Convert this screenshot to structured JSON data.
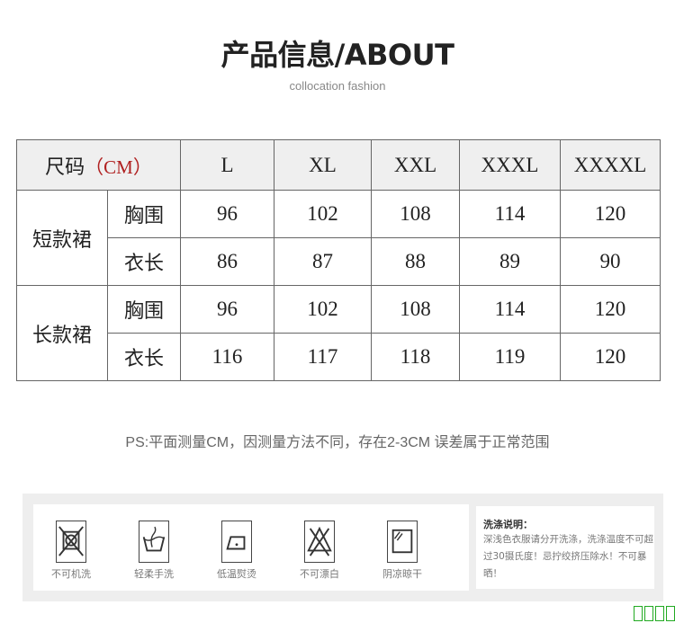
{
  "header": {
    "title": "产品信息/ABOUT",
    "subtitle": "collocation fashion"
  },
  "table": {
    "size_label": "尺码",
    "unit_label": "（CM）",
    "sizes": [
      "L",
      "XL",
      "XXL",
      "XXXL",
      "XXXXL"
    ],
    "groups": [
      {
        "name": "短款裙",
        "rows": [
          {
            "label": "胸围",
            "values": [
              "96",
              "102",
              "108",
              "114",
              "120"
            ]
          },
          {
            "label": "衣长",
            "values": [
              "86",
              "87",
              "88",
              "89",
              "90"
            ]
          }
        ]
      },
      {
        "name": "长款裙",
        "rows": [
          {
            "label": "胸围",
            "values": [
              "96",
              "102",
              "108",
              "114",
              "120"
            ]
          },
          {
            "label": "衣长",
            "values": [
              "116",
              "117",
              "118",
              "119",
              "120"
            ]
          }
        ]
      }
    ]
  },
  "note": "PS:平面测量CM，因测量方法不同，存在2-3CM 误差属于正常范围",
  "care": {
    "items": [
      {
        "icon": "no-machine-wash-icon",
        "label": "不可机洗"
      },
      {
        "icon": "hand-wash-icon",
        "label": "轻柔手洗"
      },
      {
        "icon": "low-iron-icon",
        "label": "低温熨烫"
      },
      {
        "icon": "no-bleach-icon",
        "label": "不可漂白"
      },
      {
        "icon": "shade-dry-icon",
        "label": "阴凉晾干"
      }
    ],
    "title": "洗涤说明：",
    "text": "深浅色衣服请分开洗涤，洗涤温度不可超过30摄氏度！忌拧绞挤压除水！不可暴晒！"
  },
  "colors": {
    "unit_red": "#b02020",
    "header_bg": "#efefef"
  }
}
